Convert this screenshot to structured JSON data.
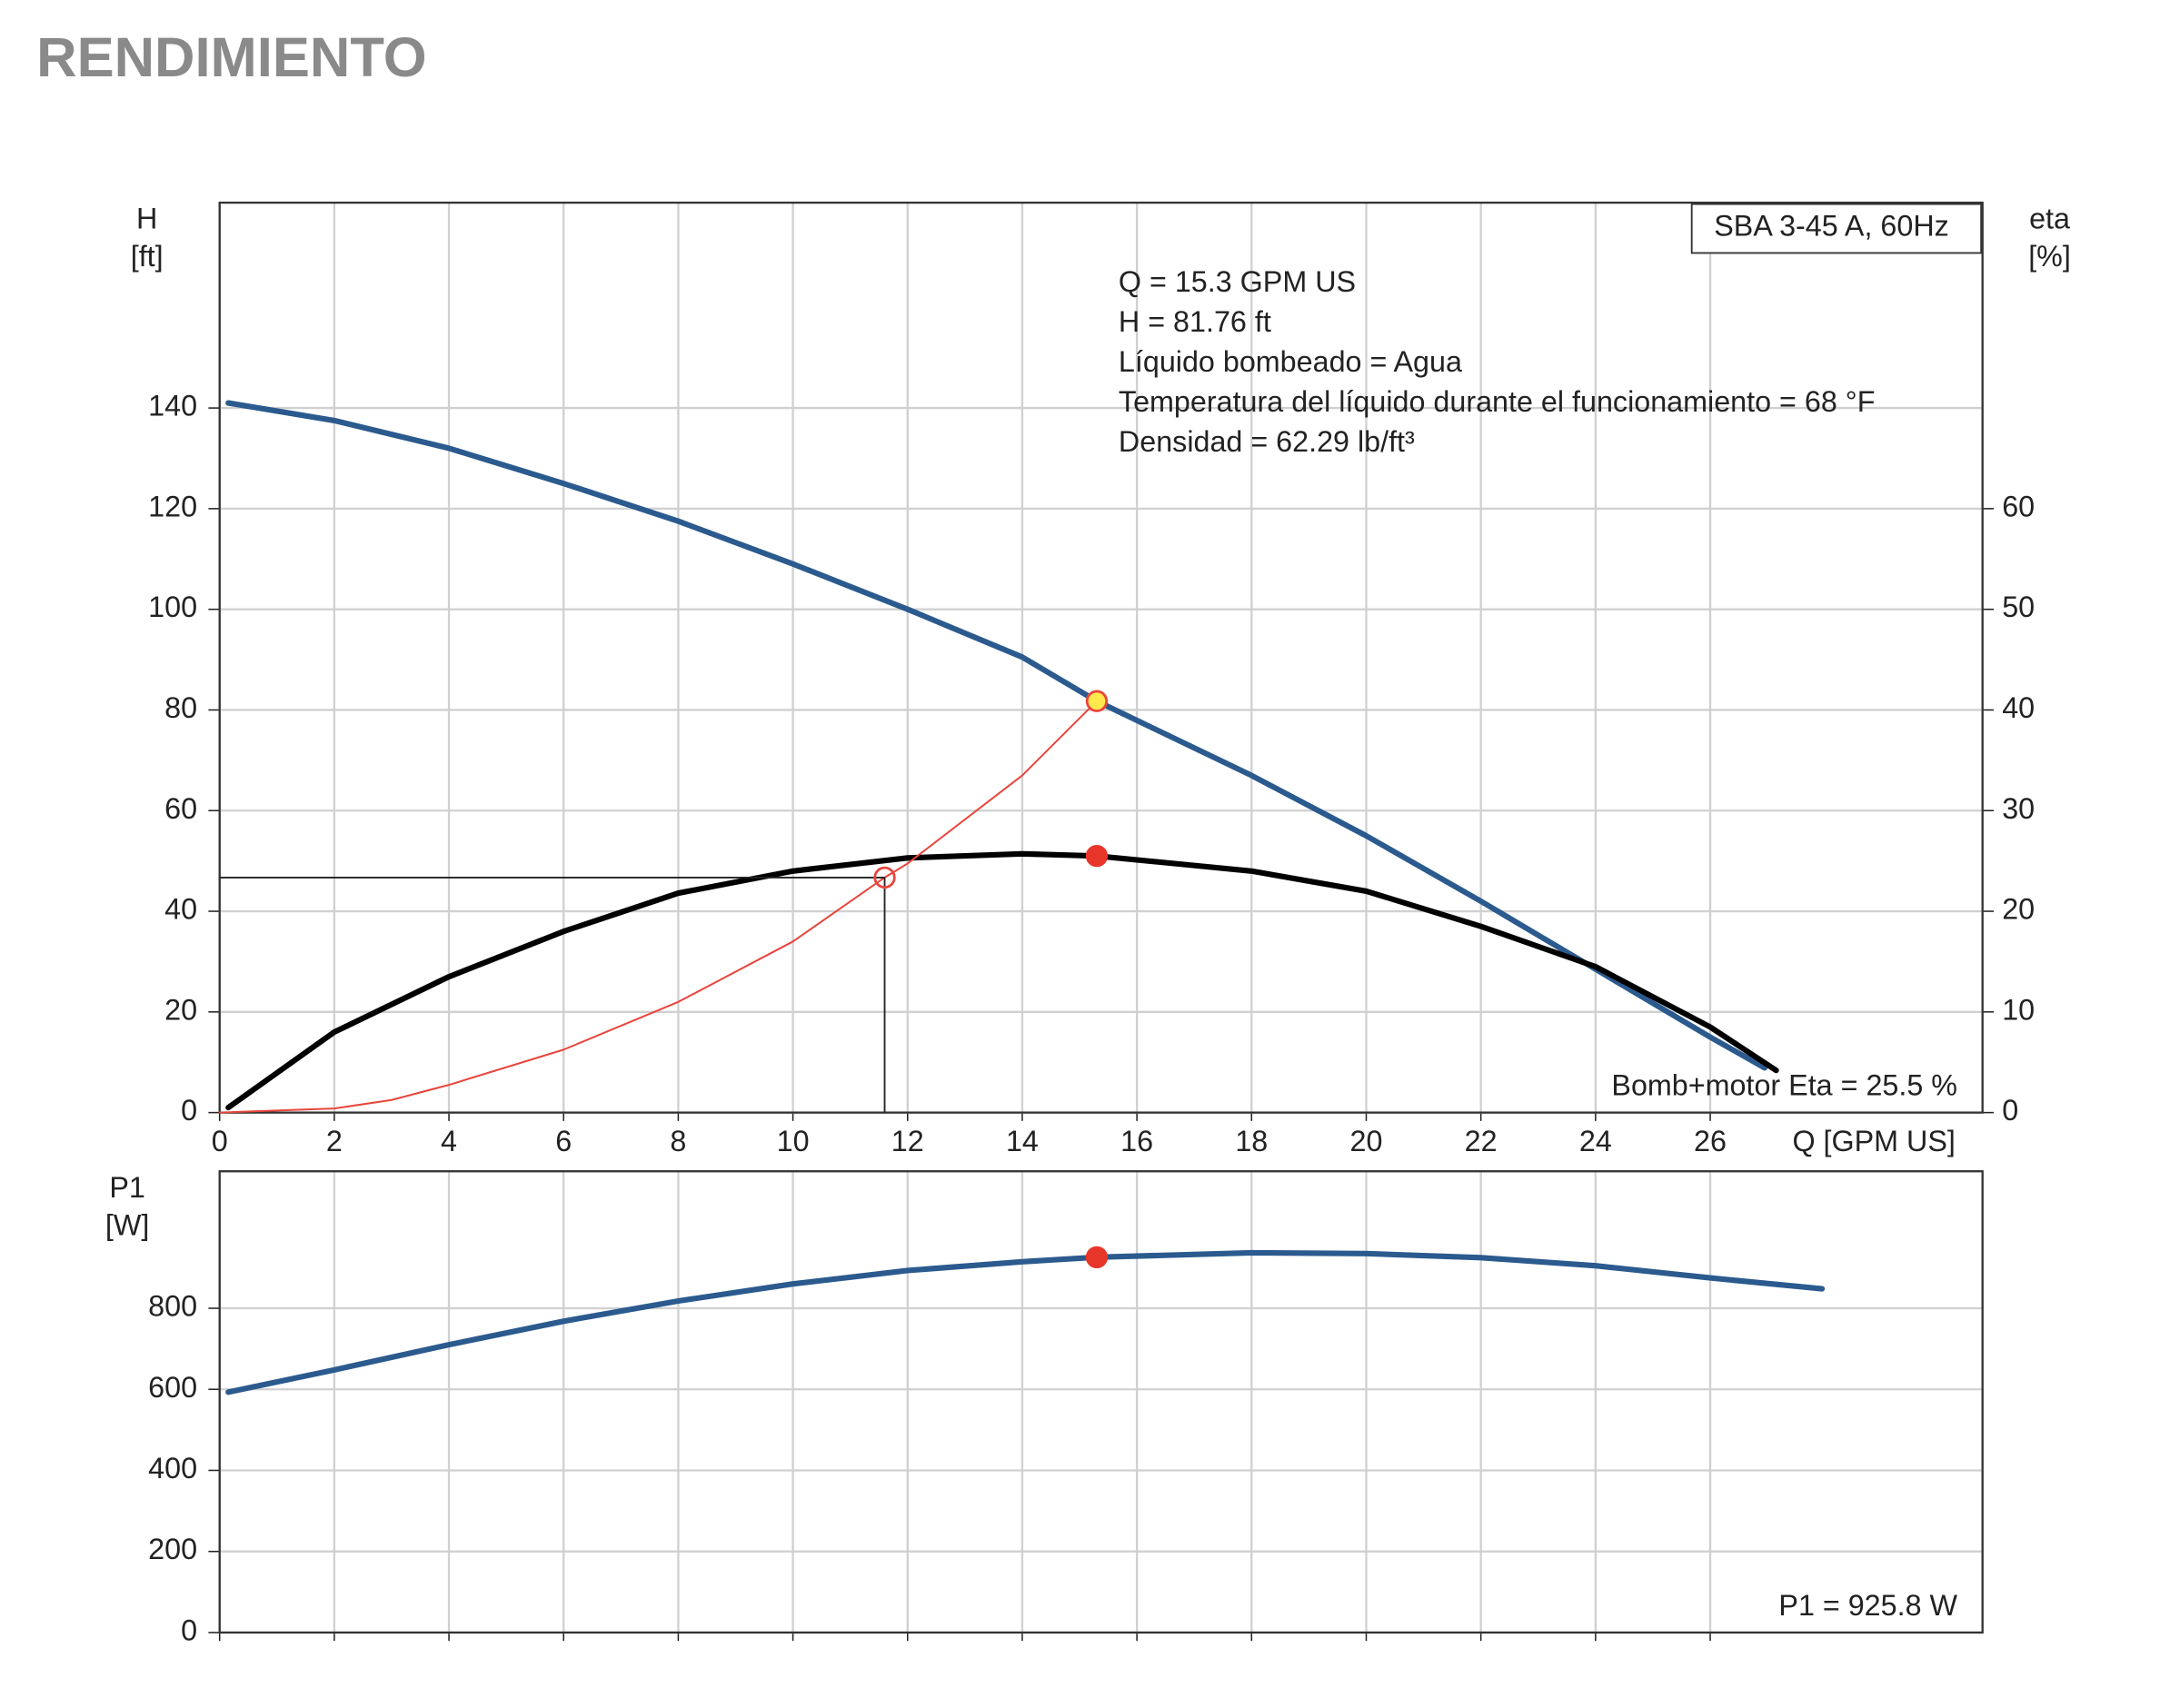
{
  "title": "RENDIMIENTO",
  "chart_data": [
    {
      "type": "line",
      "legend": "SBA 3-45 A, 60Hz",
      "annotations": [
        "Q = 15.3 GPM US",
        "H = 81.76 ft",
        "Líquido bombeado = Agua",
        "Temperatura del líquido durante el funcionamiento = 68 °F",
        "Densidad = 62.29 lb/ft³"
      ],
      "footer": "Bomb+motor Eta = 25.5 %",
      "ylabel": [
        "H",
        "[ft]"
      ],
      "y2label": [
        "eta",
        "[%]"
      ],
      "xlabel": "Q [GPM US]",
      "xlim": [
        0,
        30.75
      ],
      "ylim": [
        0,
        180.8
      ],
      "y2lim": [
        0,
        90.4
      ],
      "xticks": [
        0,
        2,
        4,
        6,
        8,
        10,
        12,
        14,
        16,
        18,
        20,
        22,
        24,
        26
      ],
      "yticks": [
        0,
        20,
        40,
        60,
        80,
        100,
        120,
        140
      ],
      "y2ticks": [
        0,
        10,
        20,
        30,
        40,
        50,
        60
      ],
      "grid": true,
      "series": [
        {
          "color": "#2b5a8e",
          "width": 4,
          "x": [
            0.15,
            2,
            4,
            6,
            8,
            10,
            12,
            14,
            15.3,
            18,
            20,
            22,
            24,
            26,
            26.95
          ],
          "values": [
            141,
            137.5,
            132,
            125,
            117.5,
            109,
            100,
            90.5,
            81.76,
            67,
            55,
            42,
            28.5,
            15,
            8.9
          ]
        },
        {
          "color": "#000000",
          "width": 4,
          "axis": "y2",
          "x": [
            0.15,
            2,
            4,
            6,
            8,
            10,
            12,
            14,
            15.3,
            18,
            20,
            22,
            24,
            26,
            27.15
          ],
          "values": [
            0.5,
            8,
            13.5,
            18,
            21.8,
            24,
            25.3,
            25.7,
            25.5,
            24,
            22,
            18.5,
            14.5,
            8.5,
            4.2
          ]
        },
        {
          "color": "#e8453c",
          "width": 1.3,
          "x": [
            0,
            2,
            3,
            4,
            6,
            8,
            10,
            11.6,
            12,
            14,
            15.3
          ],
          "values": [
            0,
            0.8,
            2.5,
            5.5,
            12.5,
            22,
            34,
            46.7,
            49.5,
            67,
            81.76
          ]
        }
      ],
      "points": [
        {
          "x": 15.3,
          "y": 81.76,
          "fill": "#ffe94d",
          "stroke": "#e8453c"
        },
        {
          "x": 15.3,
          "y": 25.5,
          "axis": "y2",
          "fill": "#e8352a",
          "stroke": "#e8352a"
        },
        {
          "x": 11.6,
          "y": 46.7,
          "fill": "none",
          "stroke": "#e8453c",
          "guides": true
        }
      ]
    },
    {
      "type": "line",
      "footer": "P1 = 925.8 W",
      "ylabel": [
        "P1",
        "[W]"
      ],
      "xlim": [
        0,
        30.75
      ],
      "ylim": [
        0,
        1138
      ],
      "xticks": [
        0,
        2,
        4,
        6,
        8,
        10,
        12,
        14,
        16,
        18,
        20,
        22,
        24,
        26
      ],
      "xtick_labels": false,
      "yticks": [
        0,
        200,
        400,
        600,
        800
      ],
      "grid": true,
      "series": [
        {
          "color": "#2b5a8e",
          "width": 4,
          "x": [
            0.15,
            2,
            4,
            6,
            8,
            10,
            12,
            14,
            15.3,
            18,
            20,
            22,
            24,
            26,
            27.95
          ],
          "values": [
            593,
            648,
            710,
            768,
            818,
            860,
            893,
            915,
            925.8,
            937,
            935,
            925,
            905,
            875,
            848
          ]
        }
      ],
      "points": [
        {
          "x": 15.3,
          "y": 925.8,
          "fill": "#e8352a",
          "stroke": "#e8352a"
        }
      ]
    }
  ]
}
